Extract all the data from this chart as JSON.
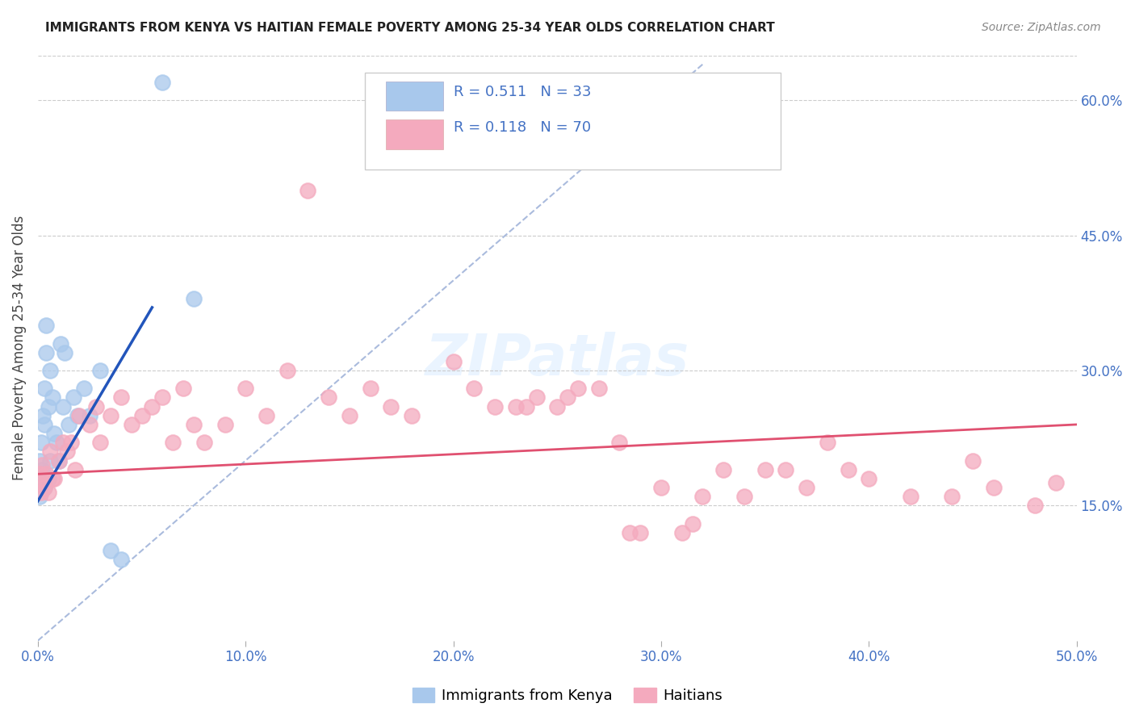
{
  "title": "IMMIGRANTS FROM KENYA VS HAITIAN FEMALE POVERTY AMONG 25-34 YEAR OLDS CORRELATION CHART",
  "source": "Source: ZipAtlas.com",
  "ylabel": "Female Poverty Among 25-34 Year Olds",
  "xlim": [
    0,
    0.5
  ],
  "ylim": [
    0.0,
    0.65
  ],
  "xticks": [
    0.0,
    0.1,
    0.2,
    0.3,
    0.4,
    0.5
  ],
  "yticks_right": [
    0.15,
    0.3,
    0.45,
    0.6
  ],
  "ytick_labels_right": [
    "15.0%",
    "30.0%",
    "45.0%",
    "60.0%"
  ],
  "xtick_labels": [
    "0.0%",
    "10.0%",
    "20.0%",
    "30.0%",
    "40.0%",
    "50.0%"
  ],
  "legend_r1": "0.511",
  "legend_n1": "33",
  "legend_r2": "0.118",
  "legend_n2": "70",
  "color_kenya": "#A8C8EC",
  "color_haiti": "#F4AABE",
  "color_blue_text": "#4472C4",
  "background_color": "#FFFFFF",
  "kenya_x": [
    0.0005,
    0.001,
    0.001,
    0.0015,
    0.002,
    0.002,
    0.0025,
    0.003,
    0.003,
    0.003,
    0.004,
    0.004,
    0.005,
    0.005,
    0.006,
    0.006,
    0.007,
    0.008,
    0.009,
    0.01,
    0.011,
    0.012,
    0.013,
    0.015,
    0.017,
    0.019,
    0.022,
    0.025,
    0.03,
    0.035,
    0.04,
    0.06,
    0.075
  ],
  "kenya_y": [
    0.175,
    0.2,
    0.16,
    0.22,
    0.185,
    0.19,
    0.25,
    0.28,
    0.24,
    0.17,
    0.32,
    0.35,
    0.26,
    0.18,
    0.3,
    0.2,
    0.27,
    0.23,
    0.22,
    0.2,
    0.33,
    0.26,
    0.32,
    0.24,
    0.27,
    0.25,
    0.28,
    0.25,
    0.3,
    0.1,
    0.09,
    0.62,
    0.38
  ],
  "haiti_x": [
    0.0005,
    0.001,
    0.0015,
    0.002,
    0.003,
    0.004,
    0.005,
    0.006,
    0.007,
    0.008,
    0.01,
    0.012,
    0.014,
    0.016,
    0.018,
    0.02,
    0.025,
    0.028,
    0.03,
    0.035,
    0.04,
    0.045,
    0.05,
    0.055,
    0.06,
    0.065,
    0.07,
    0.075,
    0.08,
    0.09,
    0.1,
    0.11,
    0.12,
    0.13,
    0.14,
    0.15,
    0.16,
    0.17,
    0.18,
    0.2,
    0.21,
    0.22,
    0.23,
    0.235,
    0.24,
    0.25,
    0.255,
    0.26,
    0.27,
    0.28,
    0.285,
    0.29,
    0.3,
    0.31,
    0.315,
    0.32,
    0.33,
    0.34,
    0.35,
    0.36,
    0.37,
    0.38,
    0.39,
    0.4,
    0.42,
    0.44,
    0.45,
    0.46,
    0.48,
    0.49
  ],
  "haiti_y": [
    0.175,
    0.185,
    0.165,
    0.195,
    0.17,
    0.185,
    0.165,
    0.21,
    0.18,
    0.18,
    0.2,
    0.22,
    0.21,
    0.22,
    0.19,
    0.25,
    0.24,
    0.26,
    0.22,
    0.25,
    0.27,
    0.24,
    0.25,
    0.26,
    0.27,
    0.22,
    0.28,
    0.24,
    0.22,
    0.24,
    0.28,
    0.25,
    0.3,
    0.5,
    0.27,
    0.25,
    0.28,
    0.26,
    0.25,
    0.31,
    0.28,
    0.26,
    0.26,
    0.26,
    0.27,
    0.26,
    0.27,
    0.28,
    0.28,
    0.22,
    0.12,
    0.12,
    0.17,
    0.12,
    0.13,
    0.16,
    0.19,
    0.16,
    0.19,
    0.19,
    0.17,
    0.22,
    0.19,
    0.18,
    0.16,
    0.16,
    0.2,
    0.17,
    0.15,
    0.175
  ],
  "kenya_line_x": [
    0.0,
    0.055
  ],
  "kenya_line_y": [
    0.155,
    0.37
  ],
  "haiti_line_x": [
    0.0,
    0.5
  ],
  "haiti_line_y": [
    0.185,
    0.24
  ],
  "diagonal_line_x": [
    0.0,
    0.32
  ],
  "diagonal_line_y": [
    0.0,
    0.64
  ]
}
